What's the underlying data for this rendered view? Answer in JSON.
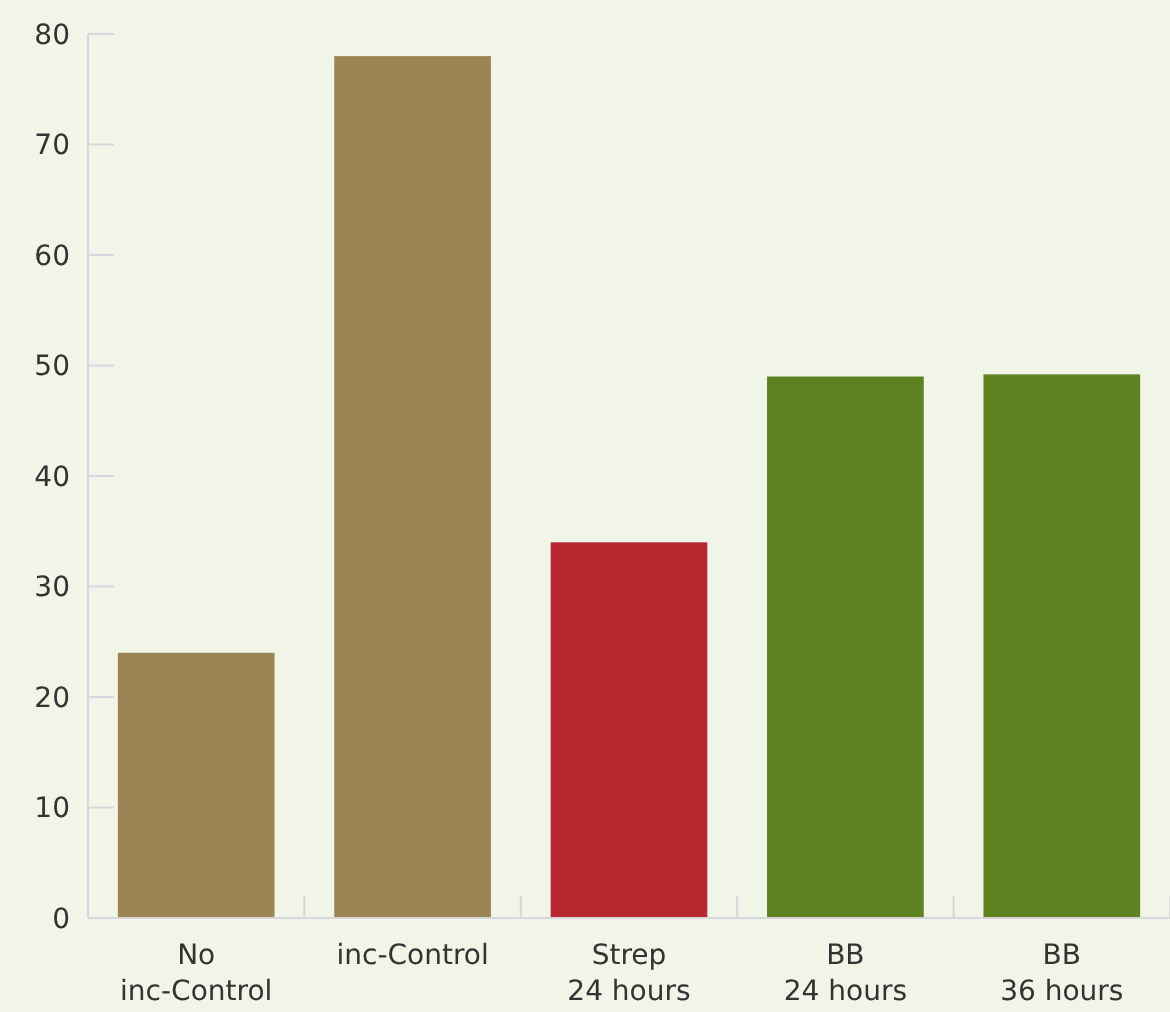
{
  "chart_data": {
    "type": "bar",
    "categories": [
      "No\ninc-Control",
      "inc-Control",
      "Strep\n24 hours",
      "BB\n24 hours",
      "BB\n36 hours"
    ],
    "values": [
      24,
      78,
      34,
      49,
      49.2
    ],
    "colors": [
      "#9c8555",
      "#9c8555",
      "#b82830",
      "#5e8122",
      "#5e8122"
    ],
    "ylim": [
      0,
      80
    ],
    "yticks": [
      0,
      10,
      20,
      30,
      40,
      50,
      60,
      70,
      80
    ],
    "grid": false
  }
}
